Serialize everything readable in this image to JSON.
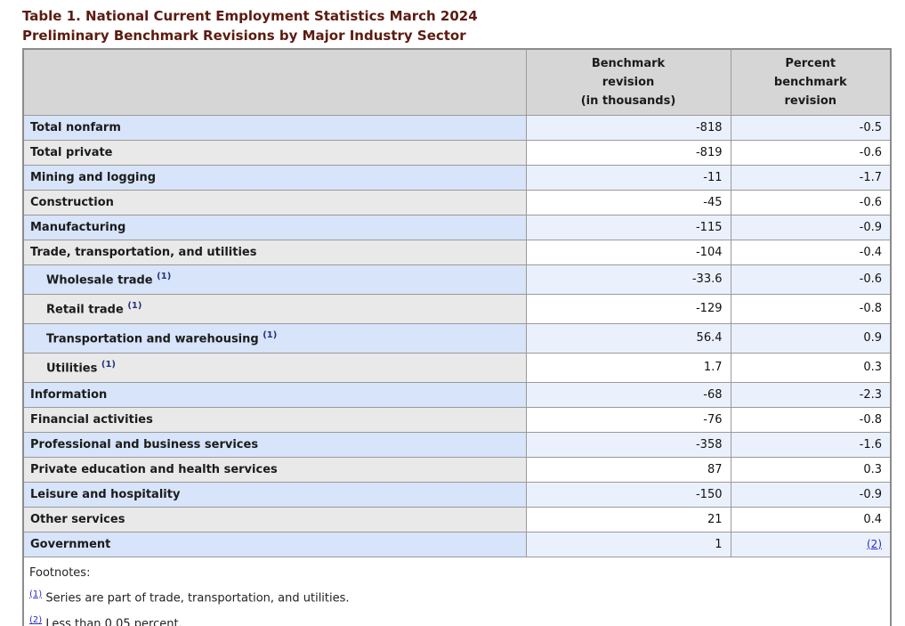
{
  "page": {
    "title_line1": "Table 1. National Current Employment Statistics March 2024",
    "title_line2": "Preliminary Benchmark Revisions by Major Industry Sector"
  },
  "table": {
    "header": {
      "industry": "",
      "benchmark": "Benchmark\nrevision\n(in thousands)",
      "percent": "Percent\nbenchmark\nrevision"
    },
    "rows": [
      {
        "label": "Total nonfarm",
        "marker": "",
        "indent": false,
        "benchmark": "-818",
        "percent": "-0.5",
        "percent_link": false,
        "shade": "blue"
      },
      {
        "label": "Total private",
        "marker": "",
        "indent": false,
        "benchmark": "-819",
        "percent": "-0.6",
        "percent_link": false,
        "shade": "gray"
      },
      {
        "label": "Mining and logging",
        "marker": "",
        "indent": false,
        "benchmark": "-11",
        "percent": "-1.7",
        "percent_link": false,
        "shade": "blue"
      },
      {
        "label": "Construction",
        "marker": "",
        "indent": false,
        "benchmark": "-45",
        "percent": "-0.6",
        "percent_link": false,
        "shade": "gray"
      },
      {
        "label": "Manufacturing",
        "marker": "",
        "indent": false,
        "benchmark": "-115",
        "percent": "-0.9",
        "percent_link": false,
        "shade": "blue"
      },
      {
        "label": "Trade, transportation, and utilities",
        "marker": "",
        "indent": false,
        "benchmark": "-104",
        "percent": "-0.4",
        "percent_link": false,
        "shade": "gray"
      },
      {
        "label": "Wholesale trade",
        "marker": "(1)",
        "indent": true,
        "benchmark": "-33.6",
        "percent": "-0.6",
        "percent_link": false,
        "shade": "blue"
      },
      {
        "label": "Retail trade",
        "marker": "(1)",
        "indent": true,
        "benchmark": "-129",
        "percent": "-0.8",
        "percent_link": false,
        "shade": "gray"
      },
      {
        "label": "Transportation and warehousing",
        "marker": "(1)",
        "indent": true,
        "benchmark": "56.4",
        "percent": "0.9",
        "percent_link": false,
        "shade": "blue"
      },
      {
        "label": "Utilities",
        "marker": "(1)",
        "indent": true,
        "benchmark": "1.7",
        "percent": "0.3",
        "percent_link": false,
        "shade": "gray"
      },
      {
        "label": "Information",
        "marker": "",
        "indent": false,
        "benchmark": "-68",
        "percent": "-2.3",
        "percent_link": false,
        "shade": "blue"
      },
      {
        "label": "Financial activities",
        "marker": "",
        "indent": false,
        "benchmark": "-76",
        "percent": "-0.8",
        "percent_link": false,
        "shade": "gray"
      },
      {
        "label": "Professional and business services",
        "marker": "",
        "indent": false,
        "benchmark": "-358",
        "percent": "-1.6",
        "percent_link": false,
        "shade": "blue"
      },
      {
        "label": "Private education and health services",
        "marker": "",
        "indent": false,
        "benchmark": "87",
        "percent": "0.3",
        "percent_link": false,
        "shade": "gray"
      },
      {
        "label": "Leisure and hospitality",
        "marker": "",
        "indent": false,
        "benchmark": "-150",
        "percent": "-0.9",
        "percent_link": false,
        "shade": "blue"
      },
      {
        "label": "Other services",
        "marker": "",
        "indent": false,
        "benchmark": "21",
        "percent": "0.4",
        "percent_link": false,
        "shade": "gray"
      },
      {
        "label": "Government",
        "marker": "",
        "indent": false,
        "benchmark": "1",
        "percent": "(2)",
        "percent_link": true,
        "shade": "blue"
      }
    ],
    "footnotes": {
      "heading": "Footnotes:",
      "items": [
        {
          "marker": "(1)",
          "text": "Series are part of trade, transportation, and utilities."
        },
        {
          "marker": "(2)",
          "text": "Less than 0.05 percent."
        }
      ]
    }
  },
  "colors": {
    "title": "#5c1b10",
    "header_bg": "#d6d6d6",
    "row_blue_label": "#d7e4f9",
    "row_blue_data": "#ebf1fc",
    "row_gray_label": "#e9e9e9",
    "row_gray_data": "#ffffff",
    "border": "#9a9a9a",
    "footnote_marker_navy": "#26337b",
    "link_blue": "#2a2ac9"
  }
}
